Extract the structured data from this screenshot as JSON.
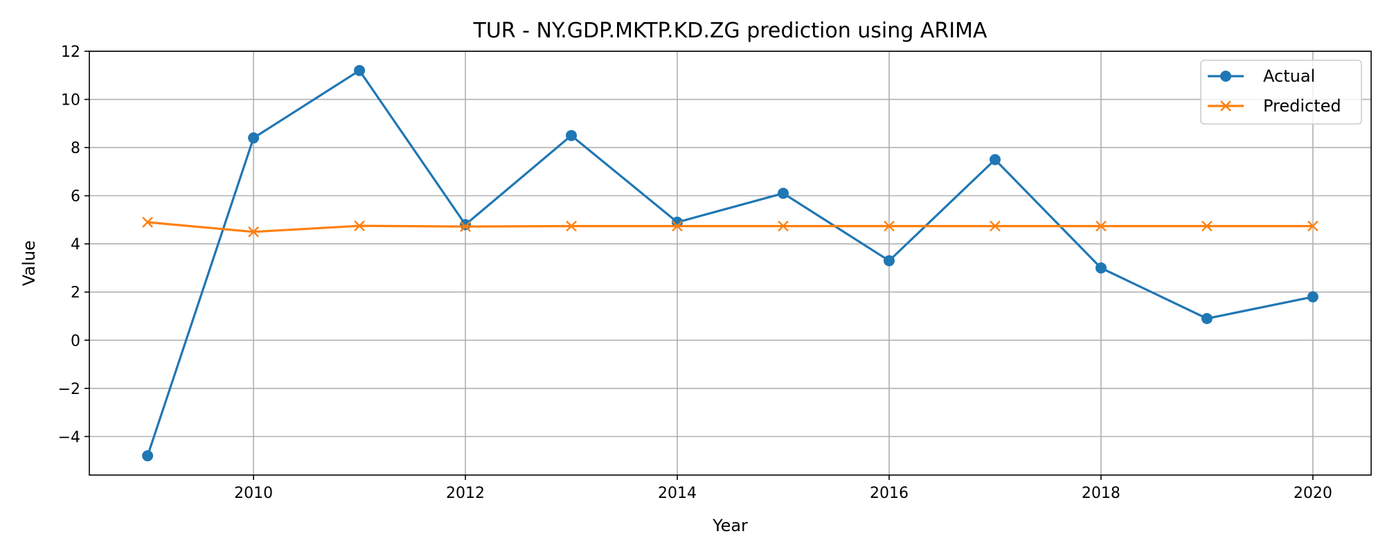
{
  "chart_data": {
    "type": "line",
    "title": "TUR - NY.GDP.MKTP.KD.ZG prediction using ARIMA",
    "xlabel": "Year",
    "ylabel": "Value",
    "xlim": [
      2008.45,
      2020.55
    ],
    "ylim": [
      -5.6,
      12
    ],
    "xticks": [
      2010,
      2012,
      2014,
      2016,
      2018,
      2020
    ],
    "yticks": [
      -4,
      -2,
      0,
      2,
      4,
      6,
      8,
      10,
      12
    ],
    "x": [
      2009,
      2010,
      2011,
      2012,
      2013,
      2014,
      2015,
      2016,
      2017,
      2018,
      2019,
      2020
    ],
    "grid": true,
    "legend_position": "top-right",
    "series": [
      {
        "name": "Actual",
        "color": "#1f77b4",
        "marker": "circle",
        "values": [
          -4.8,
          8.4,
          11.2,
          4.8,
          8.5,
          4.9,
          6.1,
          3.3,
          7.5,
          3.0,
          0.9,
          1.8
        ]
      },
      {
        "name": "Predicted",
        "color": "#ff7f0e",
        "marker": "x",
        "values": [
          4.9,
          4.5,
          4.75,
          4.72,
          4.74,
          4.74,
          4.74,
          4.74,
          4.74,
          4.74,
          4.74,
          4.74
        ]
      }
    ]
  }
}
